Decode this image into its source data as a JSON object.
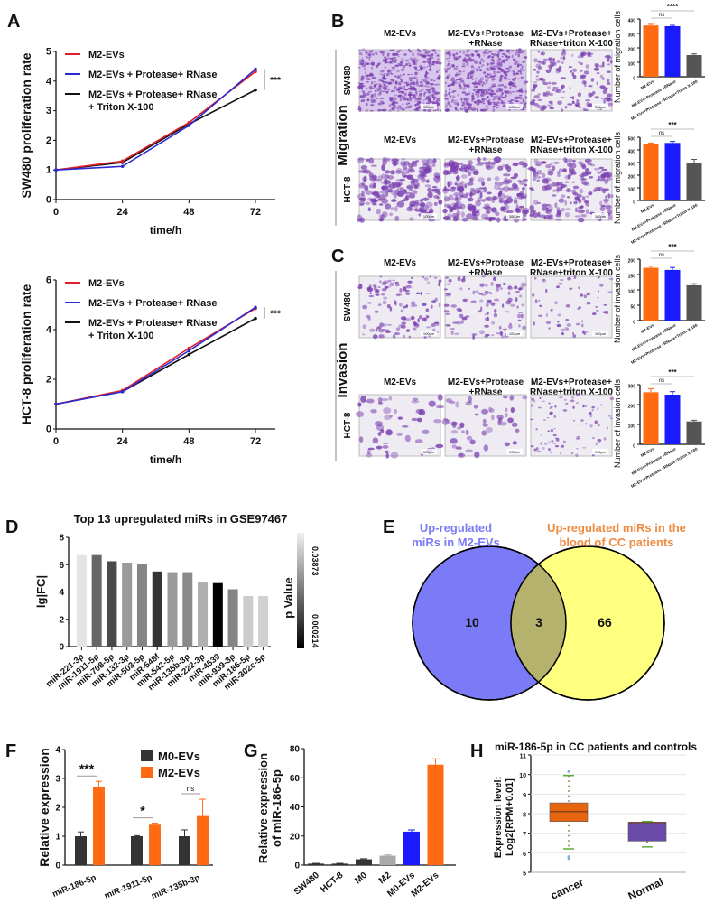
{
  "panel_letters": [
    "A",
    "B",
    "C",
    "D",
    "E",
    "F",
    "G",
    "H"
  ],
  "group_labels": {
    "migration": "Migration",
    "invasion": "Invasion"
  },
  "micrograph": {
    "columns": [
      [
        "M2-EVs"
      ],
      [
        "M2-EVs+Protease",
        "+RNase"
      ],
      [
        "M2-EVs+Protease+",
        "RNase+triton X-100"
      ]
    ],
    "rows": [
      "SW480",
      "HCT-8"
    ],
    "scale_bar": "100μm",
    "stain_color": "#7a3fb0"
  },
  "chart_data": [
    {
      "id": "A1",
      "type": "line",
      "ylabel": "SW480 proliferation rate",
      "xlabel": "time/h",
      "x": [
        0,
        24,
        48,
        72
      ],
      "ylim": [
        0,
        5
      ],
      "yticks": [
        0,
        1,
        2,
        3,
        4,
        5
      ],
      "series": [
        {
          "name": "M2-EVs",
          "color": "#e0202a",
          "values": [
            1,
            1.3,
            2.6,
            4.32
          ]
        },
        {
          "name": "M2-EVs + Protease+ RNase",
          "color": "#2a2ad0",
          "values": [
            1,
            1.12,
            2.5,
            4.4
          ]
        },
        {
          "name": "M2-EVs + Protease+ RNase + Triton X-100",
          "color": "#111111",
          "values": [
            1,
            1.25,
            2.55,
            3.7
          ]
        }
      ],
      "annotation": "***"
    },
    {
      "id": "A2",
      "type": "line",
      "ylabel": "HCT-8 proliferation rate",
      "xlabel": "time/h",
      "x": [
        0,
        24,
        48,
        72
      ],
      "ylim": [
        0,
        6
      ],
      "yticks": [
        0,
        2,
        4,
        6
      ],
      "series": [
        {
          "name": "M2-EVs",
          "color": "#e0202a",
          "values": [
            1,
            1.55,
            3.25,
            4.85
          ]
        },
        {
          "name": "M2-EVs + Protease+ RNase",
          "color": "#2a2ad0",
          "values": [
            1,
            1.5,
            3.15,
            4.9
          ]
        },
        {
          "name": "M2-EVs + Protease+ RNase + Triton X-100",
          "color": "#111111",
          "values": [
            1,
            1.5,
            3.0,
            4.45
          ]
        }
      ],
      "annotation": "***"
    },
    {
      "id": "B1",
      "type": "bar",
      "ylabel": "Number of migration cells",
      "categories": [
        "M2-EVs",
        "M2-EVs+Protease +RNase",
        "M2-EVs+Protease +RNase+Triton X-100"
      ],
      "values": [
        355,
        350,
        150
      ],
      "errors": [
        8,
        6,
        8
      ],
      "ylim": [
        0,
        400
      ],
      "yticks": [
        0,
        100,
        200,
        300,
        400
      ],
      "colors": [
        "#ff6a13",
        "#1a1aff",
        "#555555"
      ],
      "sig": [
        "ns",
        "****"
      ]
    },
    {
      "id": "B2",
      "type": "bar",
      "ylabel": "Number of migration cells",
      "categories": [
        "M2-EVs",
        "M2-EVs+Protease +RNase",
        "M2-EVs+Protease +RNase+Triton X-100"
      ],
      "values": [
        448,
        455,
        300
      ],
      "errors": [
        6,
        12,
        25
      ],
      "ylim": [
        0,
        500
      ],
      "yticks": [
        0,
        100,
        200,
        300,
        400,
        500
      ],
      "colors": [
        "#ff6a13",
        "#1a1aff",
        "#555555"
      ],
      "sig": [
        "ns",
        "***"
      ]
    },
    {
      "id": "C1",
      "type": "bar",
      "ylabel": "Number of invasion cells",
      "categories": [
        "M2-EVs",
        "M2-EVs+Protease +RNase",
        "M2-EVs+Protease +RNase+Triton X-100"
      ],
      "values": [
        172,
        165,
        115
      ],
      "errors": [
        5,
        8,
        5
      ],
      "ylim": [
        0,
        200
      ],
      "yticks": [
        0,
        50,
        100,
        150,
        200
      ],
      "colors": [
        "#ff6a13",
        "#1a1aff",
        "#555555"
      ],
      "sig": [
        "ns",
        "***"
      ]
    },
    {
      "id": "C2",
      "type": "bar",
      "ylabel": "Number of invasion cells",
      "categories": [
        "M2-EVs",
        "M2-EVs+Protease +RNase",
        "M2-EVs+Protease +RNase+Triton X-100"
      ],
      "values": [
        262,
        250,
        115
      ],
      "errors": [
        18,
        15,
        6
      ],
      "ylim": [
        0,
        300
      ],
      "yticks": [
        0,
        100,
        200,
        300
      ],
      "colors": [
        "#ff6a13",
        "#1a1aff",
        "#555555"
      ],
      "sig": [
        "ns",
        "***"
      ]
    },
    {
      "id": "D",
      "type": "bar",
      "title": "Top 13 upregulated miRs in GSE97467",
      "ylabel": "lg|FC|",
      "categories": [
        "miR-221-3p",
        "miR-1911-5p",
        "miR-708-5p",
        "miR-132-3p",
        "miR-503-5p",
        "miR-548f",
        "miR-542-5p",
        "miR-135b-3p",
        "miR-222-3p",
        "miR-4539",
        "miR-939-3p",
        "miR-186-5p",
        "miR-302c-5p"
      ],
      "values": [
        6.7,
        6.7,
        6.25,
        6.15,
        6.05,
        5.5,
        5.45,
        5.45,
        4.75,
        4.65,
        4.2,
        3.7,
        3.7
      ],
      "colors": [
        "#e4e4e4",
        "#666666",
        "#4a4a4a",
        "#9a9a9a",
        "#858585",
        "#333333",
        "#9a9a9a",
        "#8a8a8a",
        "#b0b0b0",
        "#000000",
        "#858585",
        "#cccccc",
        "#d0d0d0"
      ],
      "ylim": [
        0,
        8
      ],
      "yticks": [
        0,
        2,
        4,
        6,
        8
      ],
      "colorbar": {
        "label": "p Value",
        "min_label": "0.000214",
        "max_label": "0.03873"
      }
    },
    {
      "id": "E",
      "type": "venn",
      "sets": [
        {
          "label": [
            "Up-regulated",
            "miRs in M2-EVs"
          ],
          "color": "#7b7bf7",
          "label_color": "#7b7bf7",
          "only": 10
        },
        {
          "label": [
            "Up-regulated miRs in the",
            "blood of CC patients"
          ],
          "color": "#ffff80",
          "label_color": "#f08a40",
          "only": 66
        }
      ],
      "intersection": 3,
      "intersection_color": "#b5b26e"
    },
    {
      "id": "F",
      "type": "bar",
      "ylabel": "Relative expression",
      "categories": [
        "miR-186-5p",
        "miR-1911-5p",
        "miR-135b-3p"
      ],
      "series": [
        {
          "name": "M0-EVs",
          "color": "#333333",
          "values": [
            1,
            1,
            1
          ],
          "errors": [
            0.15,
            0.02,
            0.22
          ]
        },
        {
          "name": "M2-EVs",
          "color": "#ff6a13",
          "values": [
            2.7,
            1.4,
            1.7
          ],
          "errors": [
            0.2,
            0.05,
            0.58
          ]
        }
      ],
      "ylim": [
        0,
        4
      ],
      "yticks": [
        0,
        1,
        2,
        3,
        4
      ],
      "sig": [
        "***",
        "*",
        "ns"
      ]
    },
    {
      "id": "G",
      "type": "bar",
      "ylabel": [
        "Relative expression",
        "of miR-186-5p"
      ],
      "categories": [
        "SW480",
        "HCT-8",
        "M0",
        "M2",
        "M0-EVs",
        "M2-EVs"
      ],
      "values": [
        1,
        1,
        4,
        6.5,
        23,
        69
      ],
      "errors": [
        0.2,
        0.2,
        0.4,
        0.5,
        1.2,
        4
      ],
      "colors": [
        "#333333",
        "#333333",
        "#333333",
        "#aaaaaa",
        "#1a1aff",
        "#ff6a13"
      ],
      "ylim": [
        0,
        80
      ],
      "yticks": [
        0,
        20,
        40,
        60,
        80
      ]
    },
    {
      "id": "H",
      "type": "box",
      "title": "miR-186-5p in CC patients and controls",
      "ylabel": [
        "Expression level:",
        "Log2[RPM+0.01]"
      ],
      "categories": [
        "cancer",
        "Normal"
      ],
      "boxes": [
        {
          "min": 6.2,
          "q1": 7.6,
          "median": 8.1,
          "q3": 8.55,
          "max": 9.95,
          "outliers": [
            10.15,
            5.8,
            5.7
          ],
          "color": "#e8650f"
        },
        {
          "min": 6.3,
          "q1": 6.6,
          "median": 7.55,
          "q3": 7.55,
          "max": 7.6,
          "outliers": [],
          "color": "#6a4aa8"
        }
      ],
      "ylim": [
        5,
        11
      ],
      "yticks": [
        5,
        6,
        7,
        8,
        9,
        10,
        11
      ],
      "grid": true
    }
  ]
}
